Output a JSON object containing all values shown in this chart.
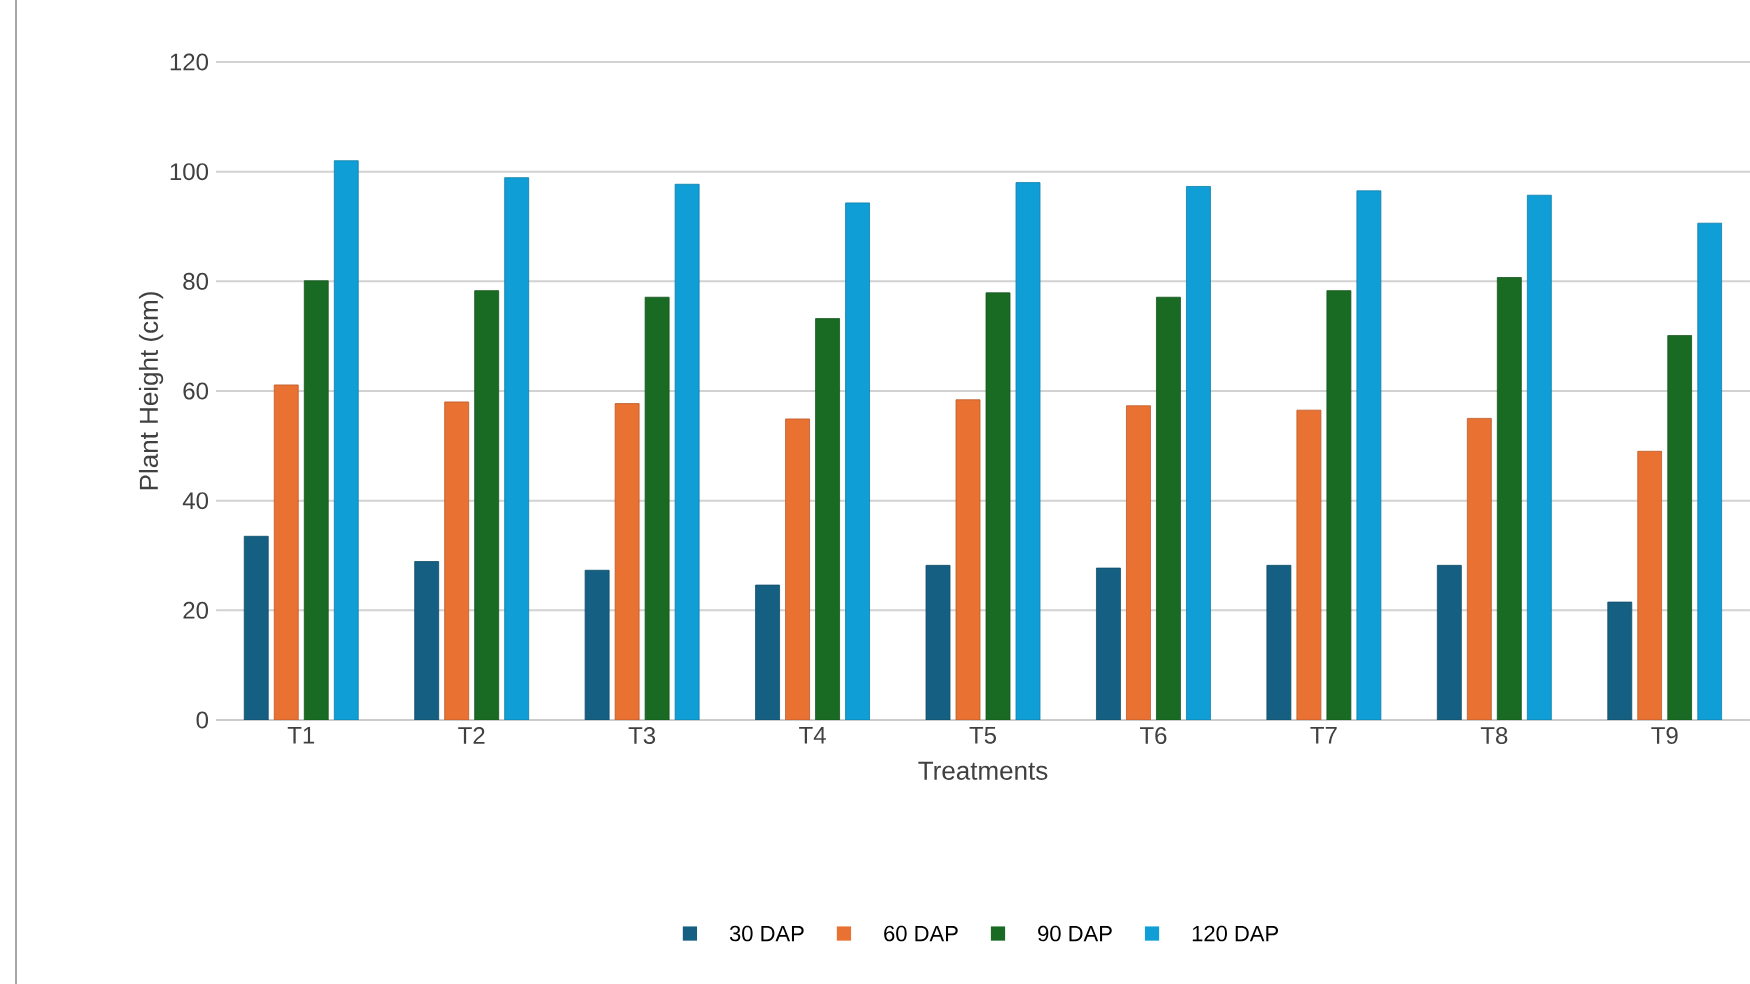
{
  "chart_data": {
    "type": "bar",
    "xlabel": "Treatments",
    "ylabel": "Plant Height (cm)",
    "categories": [
      "T1",
      "T2",
      "T3",
      "T4",
      "T5",
      "T6",
      "T7",
      "T8",
      "T9"
    ],
    "series": [
      {
        "name": "30 DAP",
        "color": "#156082",
        "values": [
          33.5,
          28.9,
          27.3,
          24.6,
          28.2,
          27.7,
          28.2,
          28.2,
          21.5
        ]
      },
      {
        "name": "60 DAP",
        "color": "#e97132",
        "values": [
          61.1,
          58.0,
          57.7,
          54.9,
          58.4,
          57.3,
          56.5,
          55.0,
          49.0
        ]
      },
      {
        "name": "90 DAP",
        "color": "#196b24",
        "values": [
          80.1,
          78.3,
          77.1,
          73.2,
          77.9,
          77.1,
          78.3,
          80.7,
          70.1
        ]
      },
      {
        "name": "120 DAP",
        "color": "#0f9ed5",
        "values": [
          102,
          98.9,
          97.7,
          94.3,
          98.0,
          97.3,
          96.5,
          95.7,
          90.6
        ]
      }
    ],
    "ylim": [
      0,
      120
    ],
    "yticks": [
      0,
      20,
      40,
      60,
      80,
      100,
      120
    ],
    "grid": "y",
    "legend": "bottom"
  }
}
